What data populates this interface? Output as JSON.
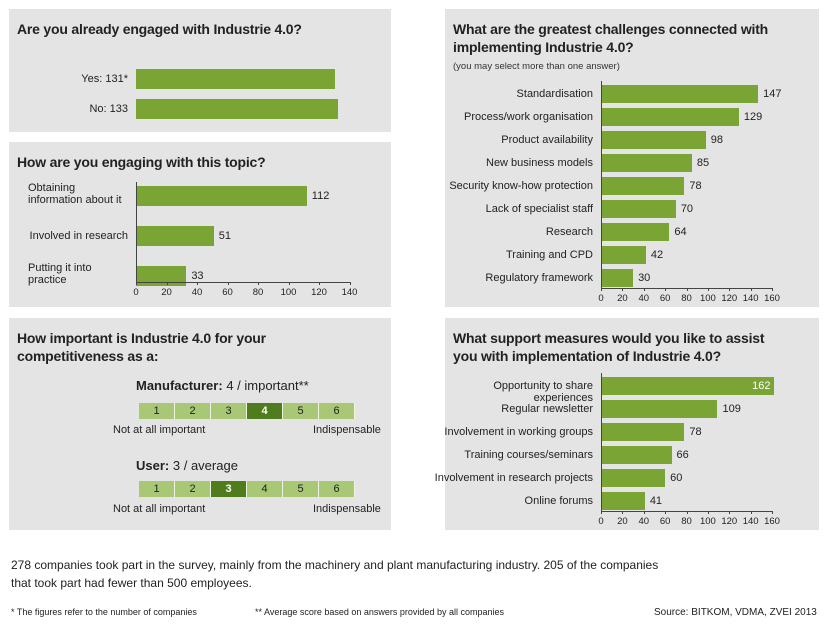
{
  "panels": {
    "engaged": {
      "title": "Are you already engaged with Industrie 4.0?"
    },
    "how": {
      "title": "How are you engaging with this topic?"
    },
    "important": {
      "title_line1": "How important is Industrie 4.0 for your",
      "title_line2": "competitiveness as a:"
    },
    "challenges": {
      "title_line1": "What are the greatest challenges connected with",
      "title_line2": "implementing Industrie 4.0?",
      "subtitle": "(you may select more than one answer)"
    },
    "support": {
      "title_line1": "What support measures would you like to assist",
      "title_line2": "you with implementation of Industrie 4.0?"
    }
  },
  "importance": {
    "manufacturer": {
      "label": "Manufacturer:",
      "text": "4 / important**",
      "selected": 4
    },
    "user": {
      "label": "User:",
      "text": "3 / average",
      "selected": 3
    },
    "scale": [
      "1",
      "2",
      "3",
      "4",
      "5",
      "6"
    ],
    "low_end": "Not at all important",
    "high_end": "Indispensable"
  },
  "chart_data": [
    {
      "type": "bar",
      "orientation": "horizontal",
      "title": "Are you already engaged with Industrie 4.0?",
      "categories": [
        "Yes: 131*",
        "No: 133"
      ],
      "values": [
        131,
        133
      ],
      "xlim": [
        0,
        140
      ]
    },
    {
      "type": "bar",
      "orientation": "horizontal",
      "title": "How are you engaging with this topic?",
      "categories": [
        "Obtaining information about it",
        "Involved in research",
        "Putting it into practice"
      ],
      "values": [
        112,
        51,
        33
      ],
      "ticks": [
        "0",
        "20",
        "40",
        "60",
        "80",
        "100",
        "120",
        "140"
      ],
      "xlim": [
        0,
        140
      ]
    },
    {
      "type": "bar",
      "orientation": "horizontal",
      "title": "What are the greatest challenges connected with implementing Industrie 4.0?",
      "categories": [
        "Standardisation",
        "Process/work organisation",
        "Product availability",
        "New business models",
        "Security know-how protection",
        "Lack of specialist staff",
        "Research",
        "Training and CPD",
        "Regulatory framework"
      ],
      "values": [
        147,
        129,
        98,
        85,
        78,
        70,
        64,
        42,
        30
      ],
      "ticks": [
        "0",
        "20",
        "40",
        "60",
        "80",
        "100",
        "120",
        "140",
        "160"
      ],
      "xlim": [
        0,
        160
      ]
    },
    {
      "type": "bar",
      "orientation": "horizontal",
      "title": "What support measures would you like to assist you with implementation of Industrie 4.0?",
      "categories": [
        "Opportunity to share experiences",
        "Regular newsletter",
        "Involvement in working groups",
        "Training courses/seminars",
        "Involvement in research projects",
        "Online forums"
      ],
      "values": [
        162,
        109,
        78,
        66,
        60,
        41
      ],
      "ticks": [
        "0",
        "20",
        "40",
        "60",
        "80",
        "100",
        "120",
        "140",
        "160"
      ],
      "xlim": [
        0,
        160
      ]
    }
  ],
  "footer": {
    "line1": "278 companies took part in the survey, mainly from the machinery and plant manufacturing industry. 205 of the companies",
    "line2": "that took part had fewer than 500 employees.",
    "note1": "* The figures refer to the number of companies",
    "note2": "** Average score based on answers provided by all companies",
    "source": "Source: BITKOM, VDMA, ZVEI 2013"
  },
  "colors": {
    "bar": "#7aa534",
    "panel": "#e4e4e4",
    "scale_light": "#a8c876",
    "scale_selected": "#4f7c1c"
  }
}
